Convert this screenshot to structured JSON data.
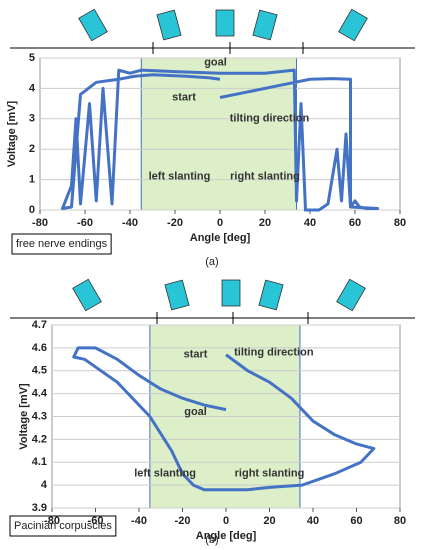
{
  "chart_data": [
    {
      "type": "line",
      "x_label": "Angle [deg]",
      "y_label": "Voltage [mV]",
      "caption": "(a)",
      "subtitle": "free nerve endings",
      "annotations": [
        "goal",
        "start",
        "tilting direction",
        "left slanting",
        "right slanting"
      ],
      "xlim": [
        -80,
        80
      ],
      "xticks": [
        -80,
        -60,
        -40,
        -20,
        0,
        20,
        40,
        60,
        80
      ],
      "ylim": [
        0,
        5
      ],
      "yticks": [
        0,
        1,
        2,
        3,
        4,
        5
      ],
      "grid": true,
      "highlight_x": [
        -35,
        34
      ],
      "highlight_color": "#dcefc9",
      "series": [
        {
          "name": null,
          "color": "#4472c4",
          "x": [
            0,
            10,
            20,
            30,
            40,
            50,
            58,
            58,
            60,
            62,
            65,
            70,
            58,
            56,
            54,
            52,
            48,
            44,
            38,
            36,
            34,
            33,
            20,
            0,
            -20,
            -35,
            -40,
            -45,
            -48,
            -52,
            -55,
            -58,
            -62,
            -64,
            -66,
            -70,
            -66,
            -62,
            -55,
            -45,
            -38,
            -30,
            -15,
            -5,
            0
          ],
          "values": [
            3.7,
            3.85,
            4.0,
            4.15,
            4.3,
            4.32,
            4.3,
            0.1,
            0.3,
            0.1,
            0.05,
            0.05,
            0.1,
            2.5,
            0.3,
            2.0,
            0.2,
            0,
            0,
            3.5,
            0.3,
            4.6,
            4.5,
            4.5,
            4.55,
            4.6,
            4.5,
            4.6,
            0.2,
            4.0,
            0.3,
            3.5,
            0.2,
            3.0,
            0.8,
            0.05,
            0.1,
            3.8,
            4.2,
            4.3,
            4.4,
            4.45,
            4.4,
            4.35,
            4.3
          ]
        }
      ]
    },
    {
      "type": "line",
      "x_label": "Angle [deg]",
      "y_label": "Voltage [mV]",
      "caption": "(b)",
      "subtitle": "Pacinian corpuscles",
      "annotations": [
        "start",
        "tilting direction",
        "goal",
        "left slanting",
        "right slanting"
      ],
      "xlim": [
        -80,
        80
      ],
      "xticks": [
        -80,
        -60,
        -40,
        -20,
        0,
        20,
        40,
        60,
        80
      ],
      "ylim": [
        3.9,
        4.7
      ],
      "yticks": [
        3.9,
        4,
        4.1,
        4.2,
        4.3,
        4.4,
        4.5,
        4.6,
        4.7
      ],
      "grid": true,
      "highlight_x": [
        -35,
        34
      ],
      "highlight_color": "#dcefc9",
      "series": [
        {
          "name": null,
          "color": "#4472c4",
          "x": [
            0,
            10,
            20,
            30,
            40,
            50,
            60,
            68,
            62,
            50,
            35,
            20,
            10,
            0,
            -10,
            -15,
            -20,
            -25,
            -35,
            -50,
            -65,
            -70,
            -68,
            -60,
            -50,
            -40,
            -30,
            -20,
            -10,
            0
          ],
          "values": [
            4.57,
            4.5,
            4.45,
            4.38,
            4.28,
            4.22,
            4.18,
            4.16,
            4.1,
            4.05,
            4.0,
            3.99,
            3.98,
            3.98,
            3.98,
            4.0,
            4.05,
            4.15,
            4.3,
            4.45,
            4.55,
            4.56,
            4.6,
            4.6,
            4.55,
            4.48,
            4.42,
            4.38,
            4.35,
            4.33
          ]
        }
      ]
    }
  ]
}
